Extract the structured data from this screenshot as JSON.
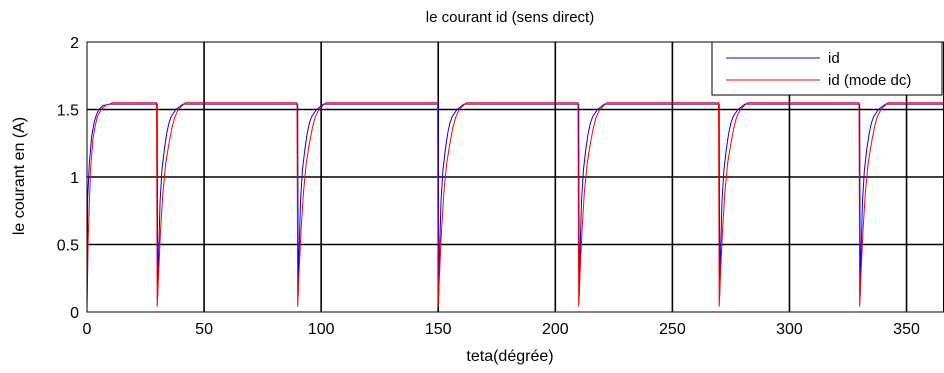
{
  "chart_data": {
    "type": "line",
    "title": "le courant id (sens direct)",
    "xlabel": "teta(dégrée)",
    "ylabel": "le courant en (A)",
    "xlim": [
      0,
      366
    ],
    "ylim": [
      0,
      2
    ],
    "xticks": [
      0,
      50,
      100,
      150,
      200,
      250,
      300,
      350
    ],
    "yticks": [
      0,
      0.5,
      1,
      1.5,
      2
    ],
    "xtick_labels": [
      "0",
      "50",
      "100",
      "150",
      "200",
      "250",
      "300",
      "350"
    ],
    "ytick_labels": [
      "0",
      "0.5",
      "1",
      "1.5",
      "2"
    ],
    "grid": true,
    "legend_position": "top-right",
    "series": [
      {
        "name": "id",
        "color": "#0000ff",
        "x": [
          0,
          0.3,
          1,
          2,
          3,
          4,
          5,
          7,
          10,
          30,
          30.2,
          30.6,
          31.2,
          32,
          33,
          34,
          35,
          36,
          38,
          41,
          90,
          90.2,
          90.6,
          91.2,
          92,
          93,
          94,
          95,
          96,
          98,
          101,
          150,
          150.2,
          150.6,
          151.2,
          152,
          153,
          154,
          155,
          156,
          158,
          161,
          210,
          210.2,
          210.6,
          211.2,
          212,
          213,
          214,
          215,
          216,
          218,
          221,
          270,
          270.2,
          270.6,
          271.2,
          272,
          273,
          274,
          275,
          276,
          278,
          281,
          330,
          330.2,
          330.6,
          331.2,
          332,
          333,
          334,
          335,
          336,
          338,
          341,
          366
        ],
        "y": [
          0.06,
          0.85,
          1.1,
          1.3,
          1.4,
          1.46,
          1.5,
          1.53,
          1.54,
          1.54,
          0.12,
          0.45,
          0.82,
          1.05,
          1.2,
          1.32,
          1.4,
          1.45,
          1.5,
          1.54,
          1.54,
          0.12,
          0.45,
          0.82,
          1.05,
          1.2,
          1.32,
          1.4,
          1.45,
          1.5,
          1.54,
          1.54,
          0.12,
          0.45,
          0.82,
          1.05,
          1.2,
          1.32,
          1.4,
          1.45,
          1.5,
          1.54,
          1.54,
          0.12,
          0.45,
          0.82,
          1.05,
          1.2,
          1.32,
          1.4,
          1.45,
          1.5,
          1.54,
          1.54,
          0.12,
          0.45,
          0.82,
          1.05,
          1.2,
          1.32,
          1.4,
          1.45,
          1.5,
          1.54,
          1.54,
          0.12,
          0.45,
          0.82,
          1.05,
          1.2,
          1.32,
          1.4,
          1.45,
          1.5,
          1.54,
          1.54
        ]
      },
      {
        "name": "id (mode dc)",
        "color": "#ff0000",
        "x": [
          0,
          0.5,
          1.5,
          2.5,
          3.5,
          4.5,
          6,
          8,
          11,
          29.7,
          30,
          30.6,
          31.4,
          32.4,
          33.6,
          35,
          36.2,
          37.4,
          39,
          42,
          89.7,
          90,
          90.6,
          91.4,
          92.4,
          93.6,
          95,
          96.2,
          97.4,
          99,
          102,
          149.7,
          150,
          150.6,
          151.4,
          152.4,
          153.6,
          155,
          156.2,
          157.4,
          159,
          162,
          209.7,
          210,
          210.6,
          211.4,
          212.4,
          213.6,
          215,
          216.2,
          217.4,
          219,
          222,
          269.7,
          270,
          270.6,
          271.4,
          272.4,
          273.6,
          275,
          276.2,
          277.4,
          279,
          282,
          329.7,
          330,
          330.6,
          331.4,
          332.4,
          333.6,
          335,
          336.2,
          337.4,
          339,
          342,
          366
        ],
        "y": [
          0.02,
          0.55,
          1.05,
          1.28,
          1.38,
          1.45,
          1.5,
          1.53,
          1.55,
          1.55,
          0.04,
          0.3,
          0.6,
          0.88,
          1.1,
          1.25,
          1.36,
          1.44,
          1.5,
          1.55,
          1.55,
          0.04,
          0.3,
          0.6,
          0.88,
          1.1,
          1.25,
          1.36,
          1.44,
          1.5,
          1.55,
          1.55,
          0.04,
          0.3,
          0.6,
          0.88,
          1.1,
          1.25,
          1.36,
          1.44,
          1.5,
          1.55,
          1.55,
          0.04,
          0.3,
          0.6,
          0.88,
          1.1,
          1.25,
          1.36,
          1.44,
          1.5,
          1.55,
          1.55,
          0.04,
          0.3,
          0.6,
          0.88,
          1.1,
          1.25,
          1.36,
          1.44,
          1.5,
          1.55,
          1.55,
          0.04,
          0.3,
          0.6,
          0.88,
          1.1,
          1.25,
          1.36,
          1.44,
          1.5,
          1.55,
          1.55
        ]
      }
    ]
  }
}
